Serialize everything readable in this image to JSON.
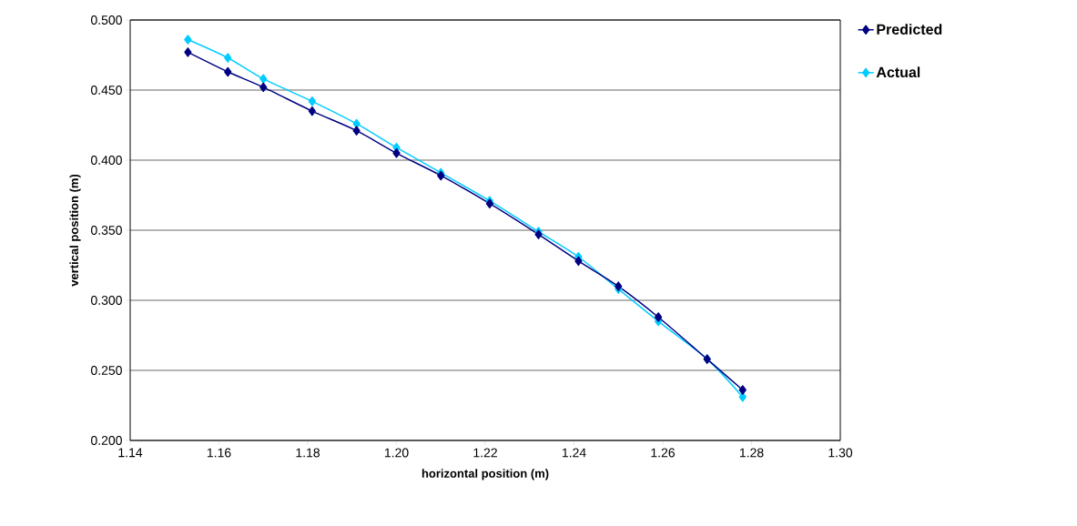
{
  "chart_data": {
    "type": "line",
    "xlabel": "horizontal position (m)",
    "ylabel": "vertical position (m)",
    "xlim": [
      1.14,
      1.3
    ],
    "ylim": [
      0.2,
      0.5
    ],
    "xticks": [
      1.14,
      1.16,
      1.18,
      {
        "value": 1.2,
        "label": "1.20"
      },
      1.22,
      1.24,
      1.26,
      1.28,
      {
        "value": 1.3,
        "label": "1.30"
      }
    ],
    "yticks": [
      {
        "value": 0.2,
        "label": "0.200"
      },
      {
        "value": 0.25,
        "label": "0.250"
      },
      {
        "value": 0.3,
        "label": "0.300"
      },
      {
        "value": 0.35,
        "label": "0.350"
      },
      {
        "value": 0.4,
        "label": "0.400"
      },
      {
        "value": 0.45,
        "label": "0.450"
      },
      {
        "value": 0.5,
        "label": "0.500"
      }
    ],
    "grid": "y",
    "legend": "top right",
    "marker": "diamond",
    "line_style": "solid",
    "x": [
      1.153,
      1.162,
      1.17,
      1.181,
      1.191,
      1.2,
      1.21,
      1.221,
      1.232,
      1.241,
      1.25,
      1.259,
      1.27,
      1.278
    ],
    "series": [
      {
        "name": "Predicted",
        "color": "#000080",
        "values": [
          0.477,
          0.463,
          0.452,
          0.435,
          0.421,
          0.405,
          0.389,
          0.369,
          0.347,
          0.328,
          0.31,
          0.288,
          0.258,
          0.236
        ]
      },
      {
        "name": "Actual",
        "color": "#00ccff",
        "values": [
          0.486,
          0.473,
          0.458,
          0.442,
          0.426,
          0.409,
          0.391,
          0.371,
          0.349,
          0.331,
          0.308,
          0.285,
          0.258,
          0.231
        ]
      }
    ]
  }
}
